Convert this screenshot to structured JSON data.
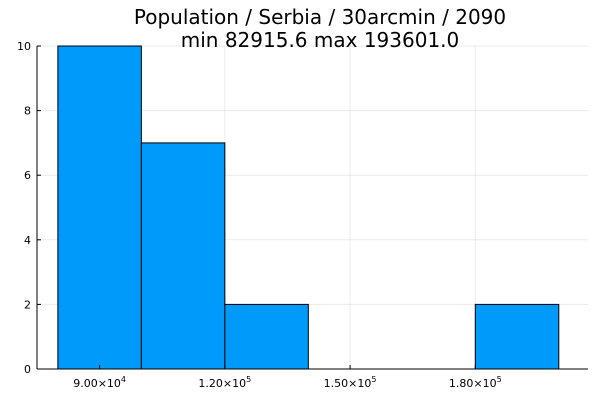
{
  "chart_data": {
    "type": "bar",
    "title": "Population / Serbia / 30arcmin / 2090",
    "subtitle": "min 82915.6  max 193601.0",
    "xlabel": "",
    "ylabel": "",
    "bins": [
      {
        "start": 80000,
        "end": 100000,
        "count": 10
      },
      {
        "start": 100000,
        "end": 120000,
        "count": 7
      },
      {
        "start": 120000,
        "end": 140000,
        "count": 2
      },
      {
        "start": 140000,
        "end": 160000,
        "count": 0
      },
      {
        "start": 160000,
        "end": 180000,
        "count": 0
      },
      {
        "start": 180000,
        "end": 200000,
        "count": 2
      }
    ],
    "xlim": [
      75000,
      207000
    ],
    "ylim": [
      0,
      10
    ],
    "x_ticks": [
      {
        "value": 90000,
        "mantissa": "9.00×10",
        "exp": "4"
      },
      {
        "value": 120000,
        "mantissa": "1.20×10",
        "exp": "5"
      },
      {
        "value": 150000,
        "mantissa": "1.50×10",
        "exp": "5"
      },
      {
        "value": 180000,
        "mantissa": "1.80×10",
        "exp": "5"
      }
    ],
    "y_ticks": [
      0,
      2,
      4,
      6,
      8,
      10
    ],
    "grid": true,
    "legend": "none",
    "bar_color": "#009AFA"
  }
}
